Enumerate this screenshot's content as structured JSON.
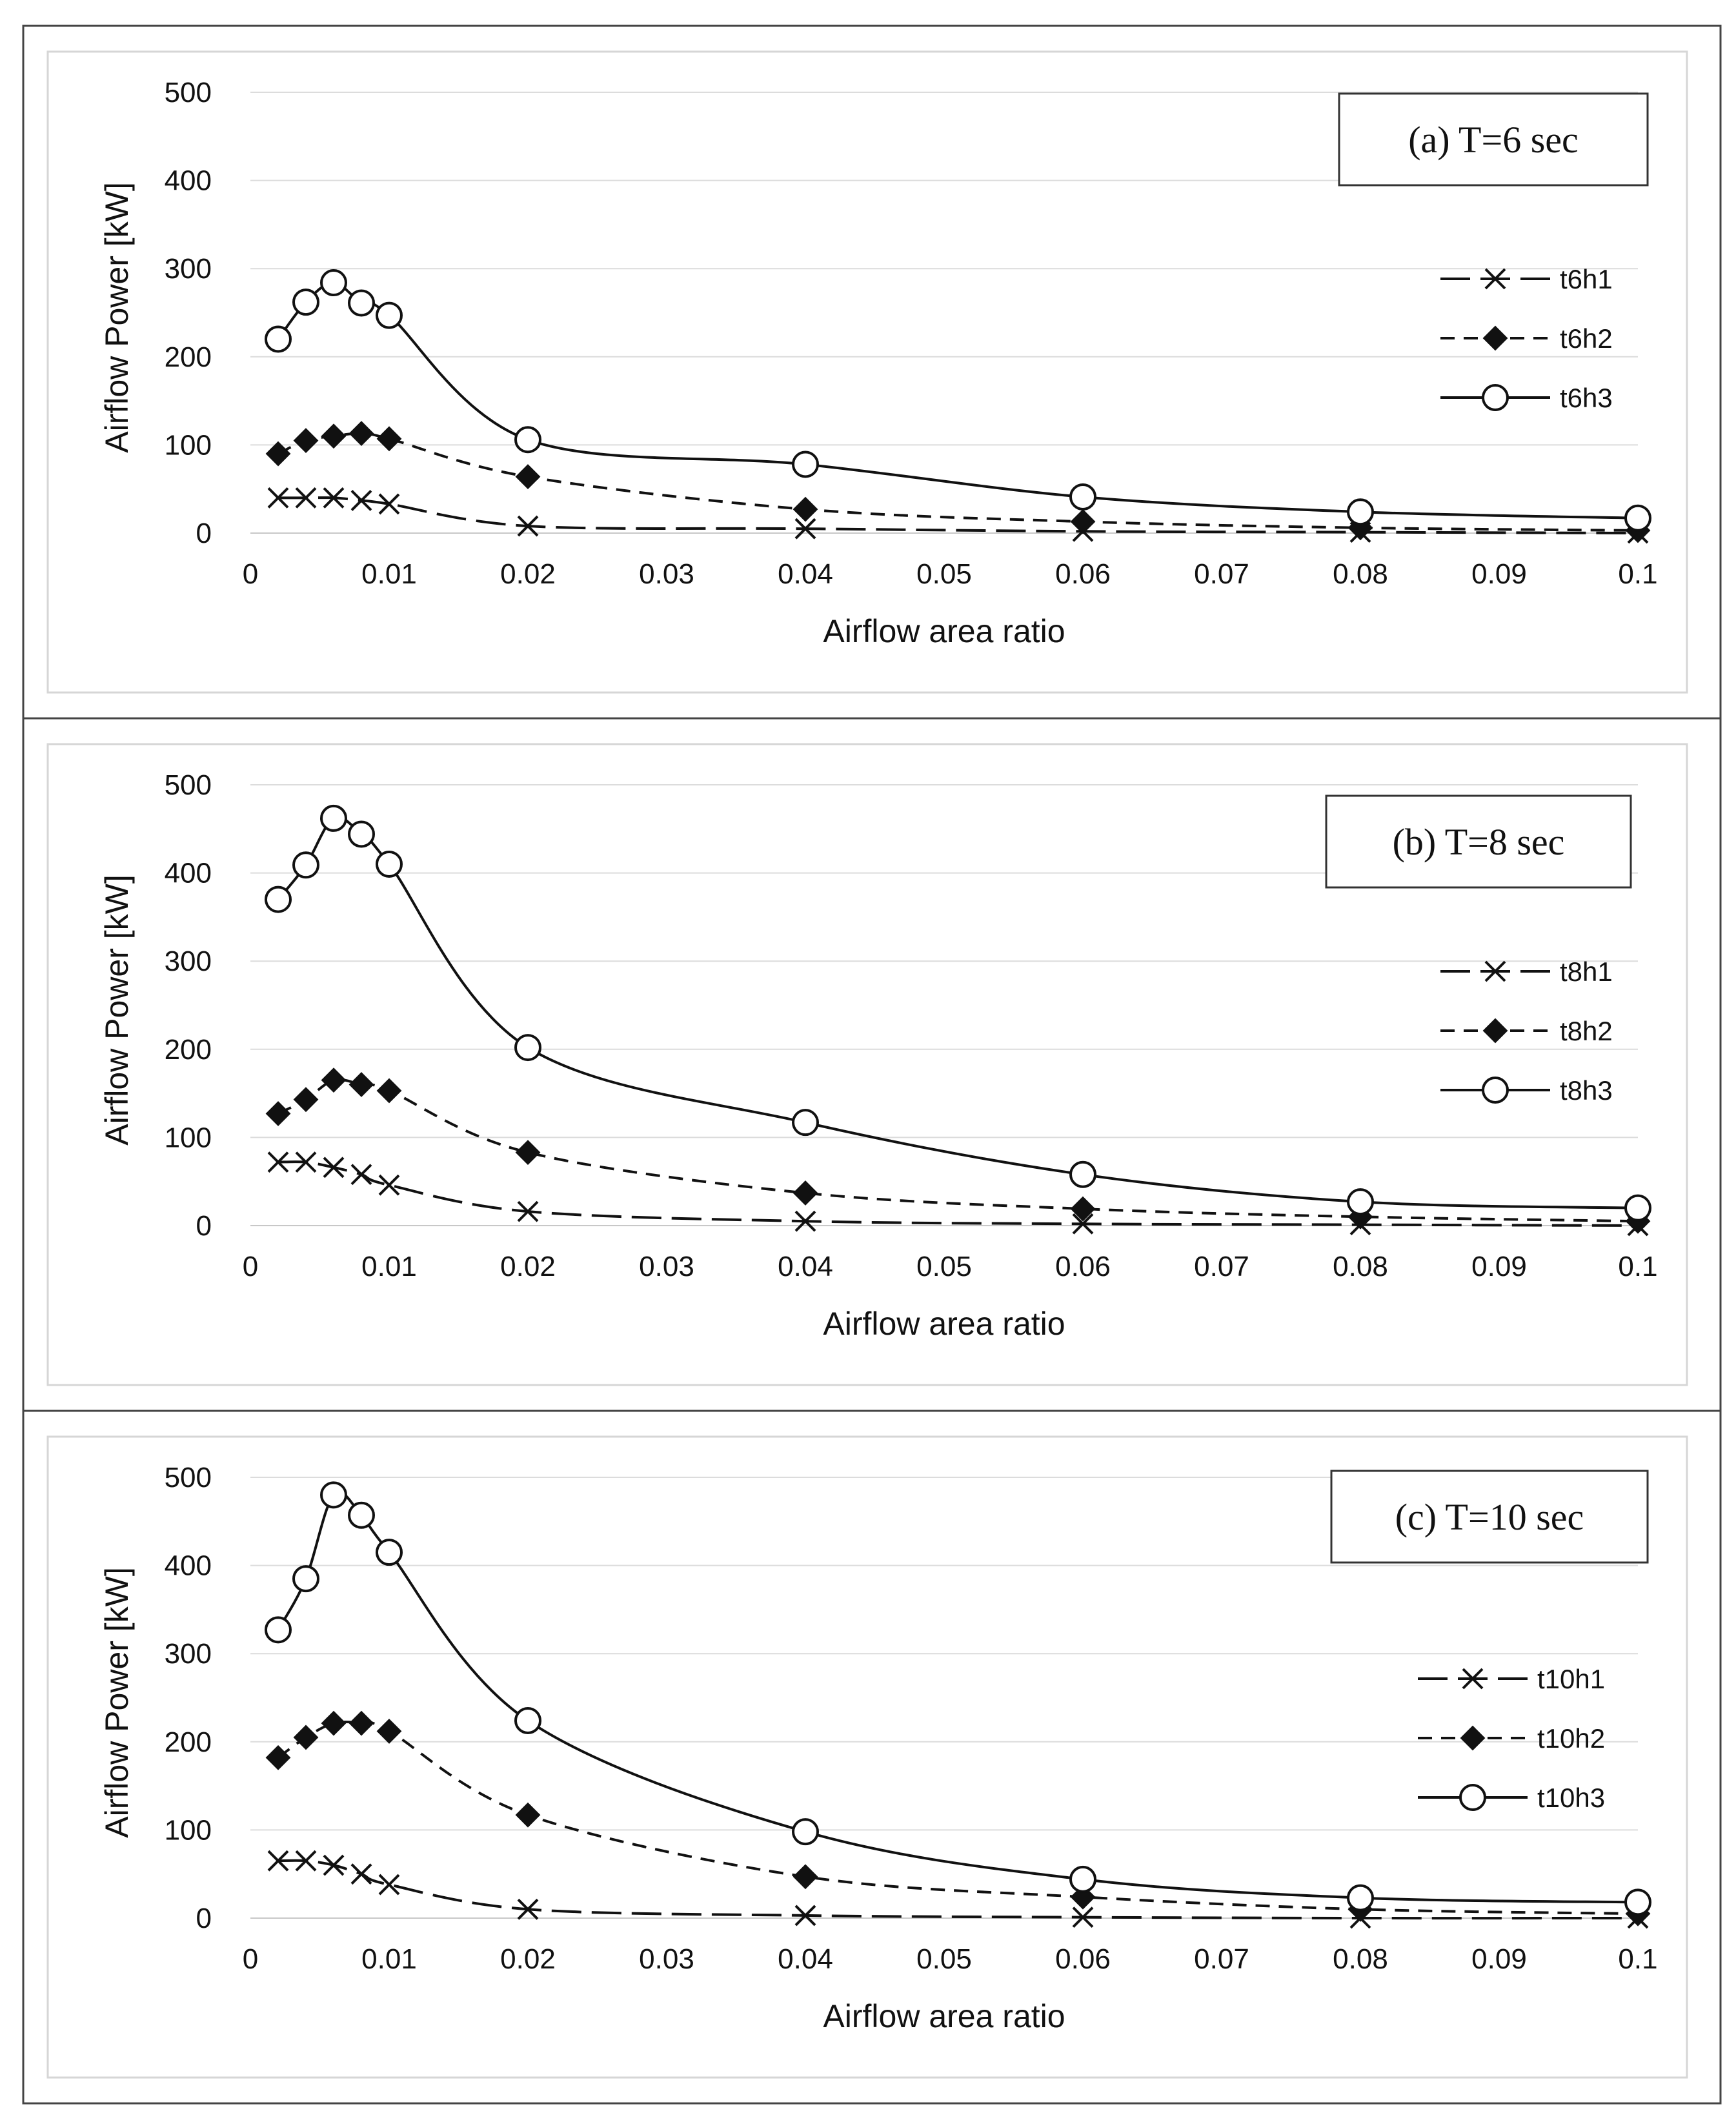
{
  "chart_data": [
    {
      "type": "line",
      "title": "(a) T=6 sec",
      "xlabel": "Airflow area ratio",
      "ylabel": "Airflow Power [kW]",
      "xlim": [
        0,
        0.1
      ],
      "ylim": [
        0,
        500
      ],
      "xticks": [
        "0",
        "0.01",
        "0.02",
        "0.03",
        "0.04",
        "0.05",
        "0.06",
        "0.07",
        "0.08",
        "0.09",
        "0.1"
      ],
      "yticks": [
        "0",
        "100",
        "200",
        "300",
        "400",
        "500"
      ],
      "x": [
        0.002,
        0.004,
        0.006,
        0.008,
        0.01,
        0.02,
        0.04,
        0.06,
        0.08,
        0.1
      ],
      "series": [
        {
          "name": "t6h1",
          "marker": "x",
          "dash": "long-dash",
          "values": [
            40,
            40,
            40,
            37,
            33,
            8,
            5,
            2,
            1,
            0
          ]
        },
        {
          "name": "t6h2",
          "marker": "diamond",
          "dash": "dashed",
          "values": [
            90,
            105,
            110,
            113,
            107,
            64,
            27,
            13,
            6,
            3
          ]
        },
        {
          "name": "t6h3",
          "marker": "circle",
          "dash": "solid",
          "values": [
            220,
            262,
            284,
            261,
            247,
            106,
            78,
            41,
            24,
            17
          ]
        }
      ]
    },
    {
      "type": "line",
      "title": "(b) T=8 sec",
      "xlabel": "Airflow area ratio",
      "ylabel": "Airflow Power [kW]",
      "xlim": [
        0,
        0.1
      ],
      "ylim": [
        0,
        500
      ],
      "xticks": [
        "0",
        "0.01",
        "0.02",
        "0.03",
        "0.04",
        "0.05",
        "0.06",
        "0.07",
        "0.08",
        "0.09",
        "0.1"
      ],
      "yticks": [
        "0",
        "100",
        "200",
        "300",
        "400",
        "500"
      ],
      "x": [
        0.002,
        0.004,
        0.006,
        0.008,
        0.01,
        0.02,
        0.04,
        0.06,
        0.08,
        0.1
      ],
      "series": [
        {
          "name": "t8h1",
          "marker": "x",
          "dash": "long-dash",
          "values": [
            72,
            72,
            66,
            58,
            46,
            16,
            5,
            2,
            1,
            0
          ]
        },
        {
          "name": "t8h2",
          "marker": "diamond",
          "dash": "dashed",
          "values": [
            127,
            143,
            165,
            160,
            153,
            83,
            37,
            19,
            10,
            5
          ]
        },
        {
          "name": "t8h3",
          "marker": "circle",
          "dash": "solid",
          "values": [
            370,
            409,
            462,
            444,
            410,
            202,
            117,
            58,
            27,
            20
          ]
        }
      ]
    },
    {
      "type": "line",
      "title": "(c) T=10 sec",
      "xlabel": "Airflow area ratio",
      "ylabel": "Airflow Power [kW]",
      "xlim": [
        0,
        0.1
      ],
      "ylim": [
        0,
        500
      ],
      "xticks": [
        "0",
        "0.01",
        "0.02",
        "0.03",
        "0.04",
        "0.05",
        "0.06",
        "0.07",
        "0.08",
        "0.09",
        "0.1"
      ],
      "yticks": [
        "0",
        "100",
        "200",
        "300",
        "400",
        "500"
      ],
      "x": [
        0.002,
        0.004,
        0.006,
        0.008,
        0.01,
        0.02,
        0.04,
        0.06,
        0.08,
        0.1
      ],
      "series": [
        {
          "name": "t10h1",
          "marker": "x",
          "dash": "long-dash",
          "values": [
            65,
            65,
            60,
            50,
            38,
            10,
            3,
            1,
            0,
            0
          ]
        },
        {
          "name": "t10h2",
          "marker": "diamond",
          "dash": "dashed",
          "values": [
            182,
            205,
            221,
            221,
            212,
            117,
            47,
            24,
            10,
            5
          ]
        },
        {
          "name": "t10h3",
          "marker": "circle",
          "dash": "solid",
          "values": [
            327,
            385,
            480,
            457,
            415,
            224,
            98,
            44,
            23,
            18
          ]
        }
      ]
    }
  ]
}
